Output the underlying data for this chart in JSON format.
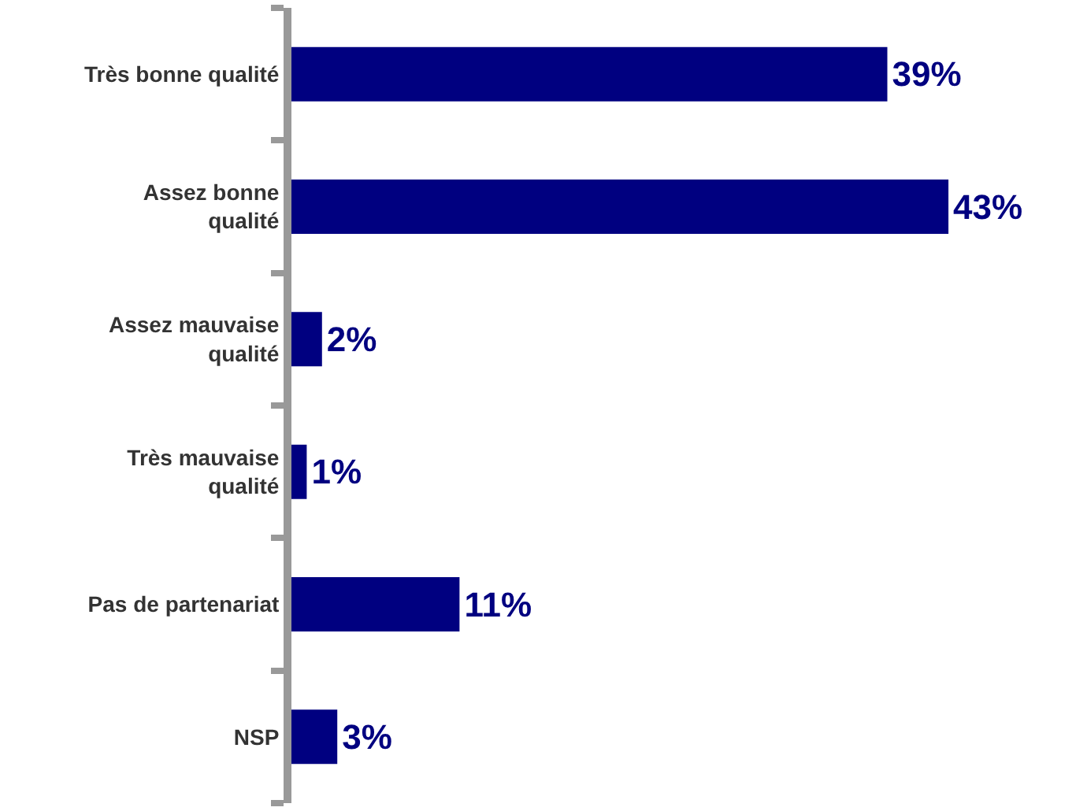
{
  "chart_data": {
    "type": "bar",
    "orientation": "horizontal",
    "categories": [
      "Très bonne qualité",
      "Assez bonne qualité",
      "Assez mauvaise qualité",
      "Très mauvaise qualité",
      "Pas de partenariat",
      "NSP"
    ],
    "values": [
      39,
      43,
      2,
      1,
      11,
      3
    ],
    "value_labels": [
      "39%",
      "43%",
      "2%",
      "1%",
      "11%",
      "3%"
    ],
    "color": "#000080",
    "tick_labels": "y",
    "legend": false
  }
}
